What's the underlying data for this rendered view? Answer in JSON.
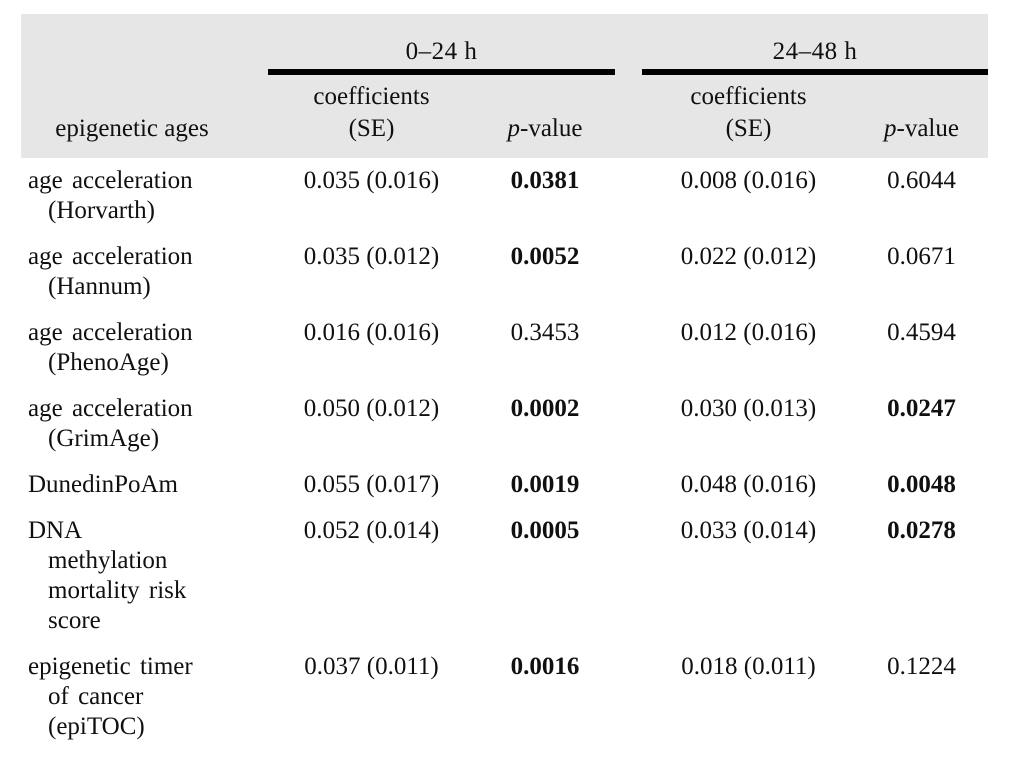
{
  "colors": {
    "header_bg": "#e6e6e6",
    "rule": "#000000",
    "text": "#101010"
  },
  "table": {
    "col_groups": [
      {
        "label": "0–24 h"
      },
      {
        "label": "24–48 h"
      }
    ],
    "headers": {
      "row_header": "epigenetic ages",
      "coeff_line1": "coefficients",
      "coeff_line2": "(SE)",
      "p_italic": "p",
      "p_suffix": "-value"
    },
    "rows": [
      {
        "label": "age acceleration\n(Horvarth)",
        "g1_coeff": "0.035 (0.016)",
        "g1_p": "0.0381",
        "g1_p_bold": true,
        "g2_coeff": "0.008 (0.016)",
        "g2_p": "0.6044",
        "g2_p_bold": false
      },
      {
        "label": "age acceleration\n(Hannum)",
        "g1_coeff": "0.035 (0.012)",
        "g1_p": "0.0052",
        "g1_p_bold": true,
        "g2_coeff": "0.022 (0.012)",
        "g2_p": "0.0671",
        "g2_p_bold": false
      },
      {
        "label": "age acceleration\n(PhenoAge)",
        "g1_coeff": "0.016 (0.016)",
        "g1_p": "0.3453",
        "g1_p_bold": false,
        "g2_coeff": "0.012 (0.016)",
        "g2_p": "0.4594",
        "g2_p_bold": false
      },
      {
        "label": "age acceleration\n(GrimAge)",
        "g1_coeff": "0.050 (0.012)",
        "g1_p": "0.0002",
        "g1_p_bold": true,
        "g2_coeff": "0.030 (0.013)",
        "g2_p": "0.0247",
        "g2_p_bold": true
      },
      {
        "label": "DunedinPoAm",
        "g1_coeff": "0.055 (0.017)",
        "g1_p": "0.0019",
        "g1_p_bold": true,
        "g2_coeff": "0.048 (0.016)",
        "g2_p": "0.0048",
        "g2_p_bold": true
      },
      {
        "label": "DNA\nmethylation\nmortality risk\nscore",
        "g1_coeff": "0.052 (0.014)",
        "g1_p": "0.0005",
        "g1_p_bold": true,
        "g2_coeff": "0.033 (0.014)",
        "g2_p": "0.0278",
        "g2_p_bold": true
      },
      {
        "label": "epigenetic timer\nof cancer\n(epiTOC)",
        "g1_coeff": "0.037 (0.011)",
        "g1_p": "0.0016",
        "g1_p_bold": true,
        "g2_coeff": "0.018 (0.011)",
        "g2_p": "0.1224",
        "g2_p_bold": false
      }
    ]
  }
}
